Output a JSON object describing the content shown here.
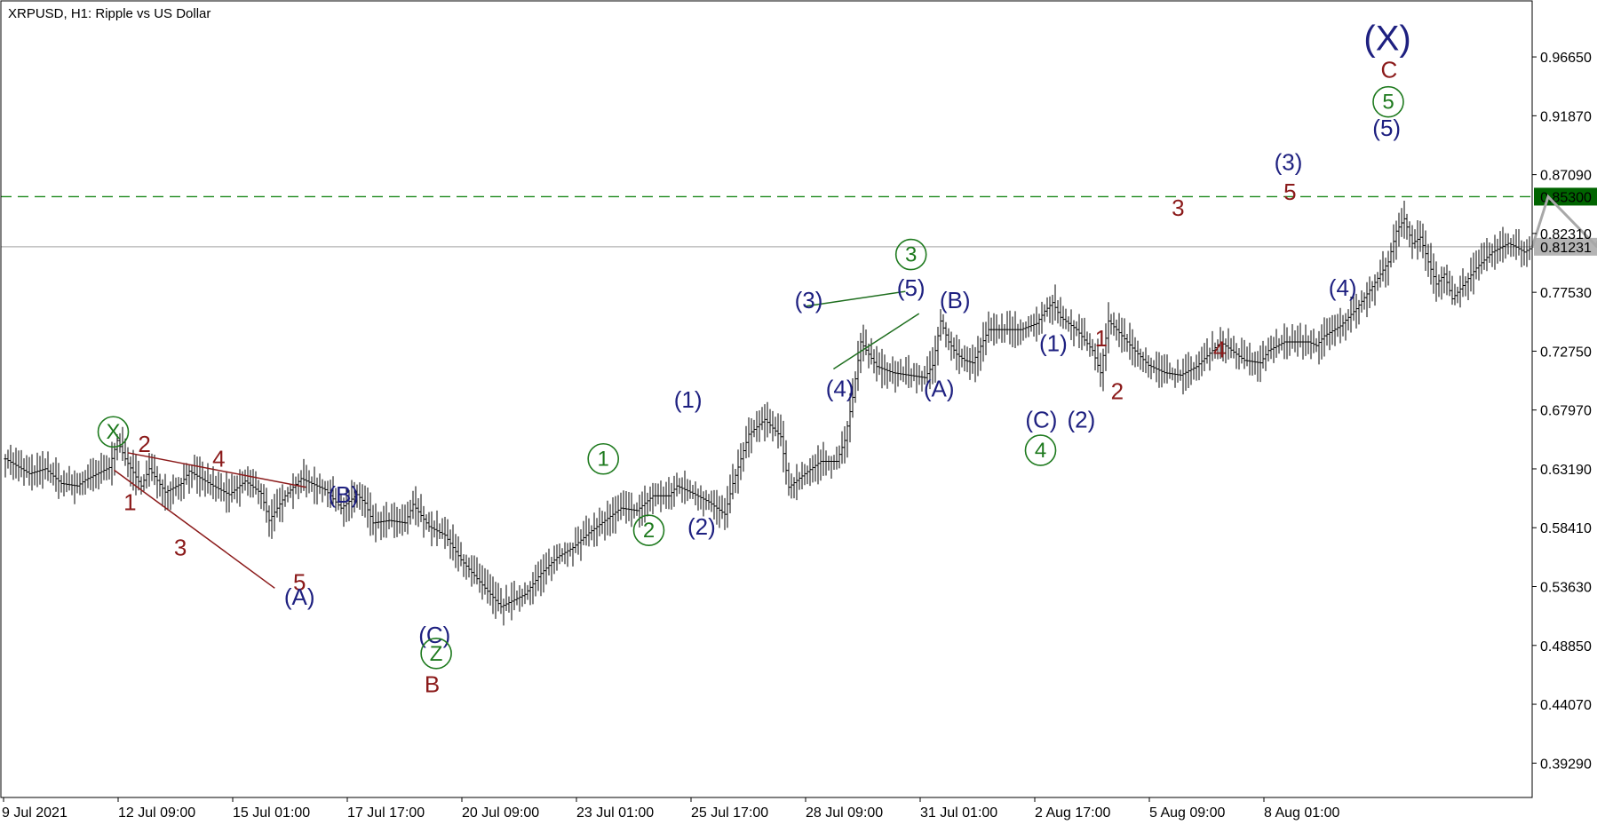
{
  "chart_data": {
    "type": "line",
    "title": "XRPUSD, H1:  Ripple vs US Dollar",
    "ylim": [
      0.365,
      1.012
    ],
    "y_ticks": [
      "0.96650",
      "0.91870",
      "0.87090",
      "0.82310",
      "0.77530",
      "0.72750",
      "0.67970",
      "0.63190",
      "0.58410",
      "0.53630",
      "0.48850",
      "0.44070",
      "0.39290"
    ],
    "x_ticks": [
      "9 Jul 2021",
      "12 Jul 09:00",
      "15 Jul 01:00",
      "17 Jul 17:00",
      "20 Jul 09:00",
      "23 Jul 01:00",
      "25 Jul 17:00",
      "28 Jul 09:00",
      "31 Jul 01:00",
      "2 Aug 17:00",
      "5 Aug 09:00",
      "8 Aug 01:00"
    ],
    "levels": [
      {
        "value": 0.853,
        "label": "0.85300",
        "style": "dashed",
        "color": "#1e8a1e",
        "label_bg": "#006400"
      },
      {
        "value": 0.81231,
        "label": "0.81231",
        "style": "solid",
        "color": "#b4b4b4",
        "label_bg": "#b4b4b4"
      }
    ],
    "series": [
      {
        "price_path": [
          [
            0,
            0.64
          ],
          [
            3,
            0.628
          ],
          [
            5,
            0.632
          ],
          [
            7,
            0.62
          ],
          [
            9,
            0.618
          ],
          [
            10,
            0.623
          ],
          [
            13,
            0.633
          ],
          [
            14,
            0.655
          ],
          [
            15,
            0.64
          ],
          [
            17,
            0.618
          ],
          [
            18,
            0.632
          ],
          [
            20,
            0.613
          ],
          [
            22,
            0.62
          ],
          [
            23,
            0.63
          ],
          [
            26,
            0.618
          ],
          [
            28,
            0.611
          ],
          [
            30,
            0.622
          ],
          [
            32,
            0.612
          ],
          [
            33,
            0.59
          ],
          [
            35,
            0.61
          ],
          [
            37,
            0.624
          ],
          [
            40,
            0.615
          ],
          [
            42,
            0.6
          ],
          [
            44,
            0.611
          ],
          [
            45,
            0.604
          ],
          [
            46,
            0.588
          ],
          [
            48,
            0.59
          ],
          [
            50,
            0.588
          ],
          [
            51,
            0.603
          ],
          [
            53,
            0.585
          ],
          [
            55,
            0.578
          ],
          [
            57,
            0.558
          ],
          [
            60,
            0.535
          ],
          [
            62,
            0.52
          ],
          [
            65,
            0.53
          ],
          [
            67,
            0.547
          ],
          [
            69,
            0.56
          ],
          [
            71,
            0.568
          ],
          [
            73,
            0.58
          ],
          [
            75,
            0.59
          ],
          [
            77,
            0.6
          ],
          [
            79,
            0.598
          ],
          [
            81,
            0.61
          ],
          [
            83,
            0.61
          ],
          [
            84,
            0.618
          ],
          [
            86,
            0.612
          ],
          [
            88,
            0.605
          ],
          [
            90,
            0.595
          ],
          [
            91,
            0.62
          ],
          [
            93,
            0.66
          ],
          [
            95,
            0.672
          ],
          [
            97,
            0.658
          ],
          [
            98,
            0.617
          ],
          [
            100,
            0.628
          ],
          [
            102,
            0.638
          ],
          [
            104,
            0.638
          ],
          [
            105,
            0.655
          ],
          [
            106,
            0.69
          ],
          [
            107,
            0.735
          ],
          [
            109,
            0.715
          ],
          [
            111,
            0.71
          ],
          [
            113,
            0.708
          ],
          [
            115,
            0.706
          ],
          [
            116,
            0.716
          ],
          [
            117,
            0.752
          ],
          [
            118,
            0.735
          ],
          [
            119,
            0.725
          ],
          [
            120,
            0.72
          ],
          [
            121,
            0.718
          ],
          [
            123,
            0.745
          ],
          [
            125,
            0.745
          ],
          [
            127,
            0.745
          ],
          [
            129,
            0.75
          ],
          [
            130,
            0.76
          ],
          [
            131,
            0.767
          ],
          [
            132,
            0.755
          ],
          [
            134,
            0.745
          ],
          [
            136,
            0.728
          ],
          [
            137,
            0.71
          ],
          [
            138,
            0.752
          ],
          [
            139,
            0.745
          ],
          [
            141,
            0.73
          ],
          [
            143,
            0.716
          ],
          [
            145,
            0.71
          ],
          [
            147,
            0.708
          ],
          [
            149,
            0.715
          ],
          [
            151,
            0.728
          ],
          [
            152,
            0.735
          ],
          [
            153,
            0.73
          ],
          [
            155,
            0.72
          ],
          [
            157,
            0.718
          ],
          [
            158,
            0.728
          ],
          [
            160,
            0.735
          ],
          [
            163,
            0.735
          ],
          [
            164,
            0.732
          ],
          [
            165,
            0.74
          ],
          [
            167,
            0.748
          ],
          [
            169,
            0.762
          ],
          [
            171,
            0.78
          ],
          [
            173,
            0.8
          ],
          [
            174,
            0.825
          ],
          [
            175,
            0.835
          ],
          [
            176,
            0.815
          ],
          [
            177,
            0.82
          ],
          [
            178,
            0.8
          ],
          [
            179,
            0.782
          ],
          [
            180,
            0.79
          ],
          [
            181,
            0.77
          ],
          [
            182,
            0.778
          ],
          [
            184,
            0.795
          ],
          [
            186,
            0.808
          ],
          [
            188,
            0.815
          ],
          [
            189,
            0.812
          ],
          [
            190,
            0.808
          ],
          [
            191,
            0.812
          ]
        ],
        "projection_x": [
          191,
          193,
          199,
          205
        ],
        "projection_y": [
          0.812,
          0.853,
          0.813,
          0.905
        ]
      }
    ],
    "annotations": {
      "text_labels": [
        {
          "t": "2",
          "c": "#8b1a1a",
          "x": 17.4,
          "y": 0.652
        },
        {
          "t": "4",
          "c": "#8b1a1a",
          "x": 26.7,
          "y": 0.64
        },
        {
          "t": "1",
          "c": "#8b1a1a",
          "x": 15.6,
          "y": 0.605
        },
        {
          "t": "3",
          "c": "#8b1a1a",
          "x": 21.9,
          "y": 0.568
        },
        {
          "t": "5",
          "c": "#8b1a1a",
          "x": 36.8,
          "y": 0.54
        },
        {
          "t": "(A)",
          "c": "#1e2080",
          "x": 36.8,
          "y": 0.528
        },
        {
          "t": "(B)",
          "c": "#1e2080",
          "x": 42.3,
          "y": 0.611
        },
        {
          "t": "(C)",
          "c": "#1e2080",
          "x": 53.7,
          "y": 0.497
        },
        {
          "t": "B",
          "c": "#8b1a1a",
          "x": 53.4,
          "y": 0.457
        },
        {
          "t": "(1)",
          "c": "#1e2080",
          "x": 85.4,
          "y": 0.688
        },
        {
          "t": "(2)",
          "c": "#1e2080",
          "x": 87.1,
          "y": 0.585
        },
        {
          "t": "(3)",
          "c": "#1e2080",
          "x": 100.5,
          "y": 0.769
        },
        {
          "t": "(4)",
          "c": "#1e2080",
          "x": 104.4,
          "y": 0.697
        },
        {
          "t": "(5)",
          "c": "#1e2080",
          "x": 113.3,
          "y": 0.779
        },
        {
          "t": "(B)",
          "c": "#1e2080",
          "x": 118.8,
          "y": 0.769
        },
        {
          "t": "(A)",
          "c": "#1e2080",
          "x": 116.8,
          "y": 0.697
        },
        {
          "t": "(1)",
          "c": "#1e2080",
          "x": 131.1,
          "y": 0.734
        },
        {
          "t": "1",
          "c": "#8b1a1a",
          "x": 137.1,
          "y": 0.738
        },
        {
          "t": "(C)",
          "c": "#1e2080",
          "x": 129.6,
          "y": 0.672
        },
        {
          "t": "(2)",
          "c": "#1e2080",
          "x": 134.6,
          "y": 0.672
        },
        {
          "t": "2",
          "c": "#8b1a1a",
          "x": 139.1,
          "y": 0.695
        },
        {
          "t": "3",
          "c": "#8b1a1a",
          "x": 146.7,
          "y": 0.844
        },
        {
          "t": "4",
          "c": "#8b1a1a",
          "x": 151.9,
          "y": 0.729
        },
        {
          "t": "(3)",
          "c": "#1e2080",
          "x": 160.5,
          "y": 0.881
        },
        {
          "t": "5",
          "c": "#8b1a1a",
          "x": 160.7,
          "y": 0.857
        },
        {
          "t": "(4)",
          "c": "#1e2080",
          "x": 167.3,
          "y": 0.779
        },
        {
          "t": "(5)",
          "c": "#1e2080",
          "x": 172.8,
          "y": 0.909
        },
        {
          "t": "C",
          "c": "#8b1a1a",
          "x": 173.1,
          "y": 0.956
        }
      ],
      "circle_labels": [
        {
          "t": "X",
          "x": 13.5,
          "y": 0.662
        },
        {
          "t": "Z",
          "x": 53.9,
          "y": 0.482
        },
        {
          "t": "1",
          "x": 74.8,
          "y": 0.64
        },
        {
          "t": "2",
          "x": 80.5,
          "y": 0.582
        },
        {
          "t": "3",
          "x": 113.3,
          "y": 0.806
        },
        {
          "t": "4",
          "x": 129.5,
          "y": 0.647
        },
        {
          "t": "5",
          "x": 173.0,
          "y": 0.93
        }
      ],
      "big_label": {
        "t": "(X)",
        "x": 172.9,
        "y": 0.982
      },
      "trend_lines": [
        {
          "c": "#8b1a1a",
          "points": [
            [
              15.3,
              0.645
            ],
            [
              37.6,
              0.617
            ]
          ]
        },
        {
          "c": "#8b1a1a",
          "points": [
            [
              13.6,
              0.631
            ],
            [
              33.7,
              0.535
            ]
          ]
        },
        {
          "c": "#1e6e1e",
          "points": [
            [
              100.1,
              0.764
            ],
            [
              112.6,
              0.776
            ]
          ]
        },
        {
          "c": "#1e6e1e",
          "points": [
            [
              103.6,
              0.713
            ],
            [
              114.3,
              0.758
            ]
          ]
        }
      ]
    }
  }
}
